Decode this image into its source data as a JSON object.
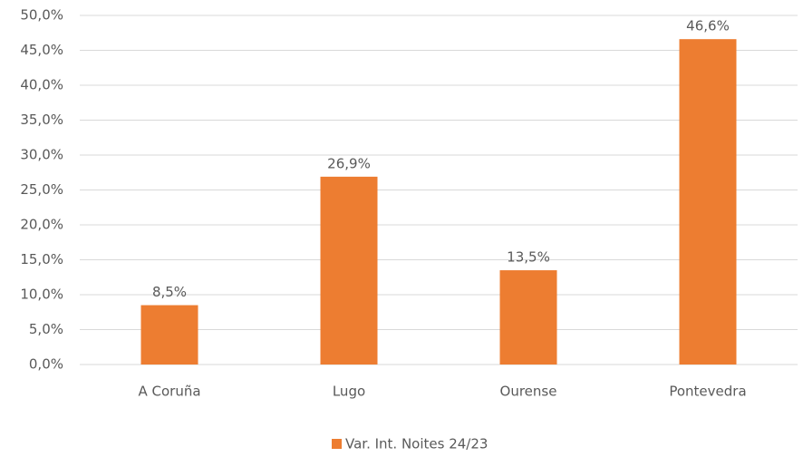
{
  "chart_data": {
    "type": "bar",
    "categories": [
      "A Coruña",
      "Lugo",
      "Ourense",
      "Pontevedra"
    ],
    "series": [
      {
        "name": "Var. Int. Noites 24/23",
        "color": "#ed7d31",
        "values": [
          8.5,
          26.9,
          13.5,
          46.6
        ],
        "value_labels": [
          "8,5%",
          "26,9%",
          "13,5%",
          "46,6%"
        ]
      }
    ],
    "ylim": [
      0,
      50
    ],
    "yticks": [
      {
        "value": 0,
        "label": "0,0%"
      },
      {
        "value": 5,
        "label": "5,0%"
      },
      {
        "value": 10,
        "label": "10,0%"
      },
      {
        "value": 15,
        "label": "15,0%"
      },
      {
        "value": 20,
        "label": "20,0%"
      },
      {
        "value": 25,
        "label": "25,0%"
      },
      {
        "value": 30,
        "label": "30,0%"
      },
      {
        "value": 35,
        "label": "35,0%"
      },
      {
        "value": 40,
        "label": "40,0%"
      },
      {
        "value": 45,
        "label": "45,0%"
      },
      {
        "value": 50,
        "label": "50,0%"
      }
    ],
    "grid": true,
    "legend": "bottom"
  }
}
